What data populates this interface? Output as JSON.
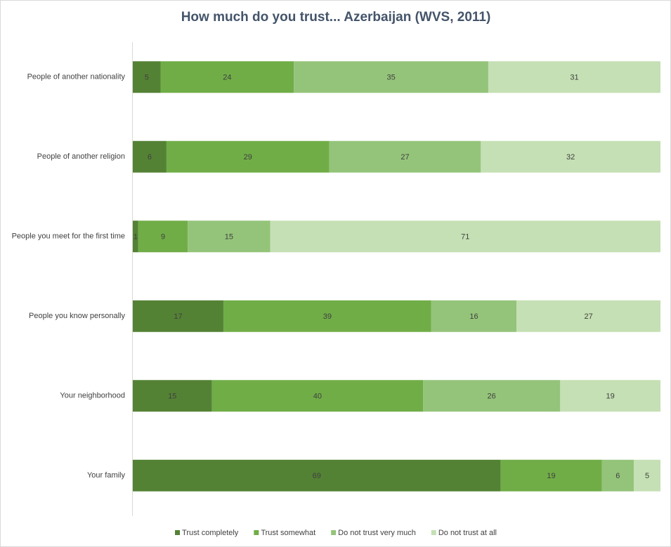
{
  "chart_data": {
    "type": "bar",
    "orientation": "horizontal",
    "stacking": "percent",
    "title": "How much do you trust... Azerbaijan (WVS, 2011)",
    "categories": [
      "People of another nationality",
      "People of another religion",
      "People you meet for the first time",
      "People you know personally",
      "Your neighborhood",
      "Your family"
    ],
    "series": [
      {
        "name": "Trust completely",
        "color": "#548235",
        "values": [
          5,
          6,
          1,
          17,
          15,
          69
        ]
      },
      {
        "name": "Trust somewhat",
        "color": "#70ad47",
        "values": [
          24,
          29,
          9,
          39,
          40,
          19
        ]
      },
      {
        "name": "Do not trust very much",
        "color": "#94c47a",
        "values": [
          35,
          27,
          15,
          16,
          26,
          6
        ]
      },
      {
        "name": "Do not trust at all",
        "color": "#c5e0b4",
        "values": [
          31,
          32,
          71,
          27,
          19,
          5
        ]
      }
    ],
    "legend": "bottom",
    "data_labels": true
  }
}
